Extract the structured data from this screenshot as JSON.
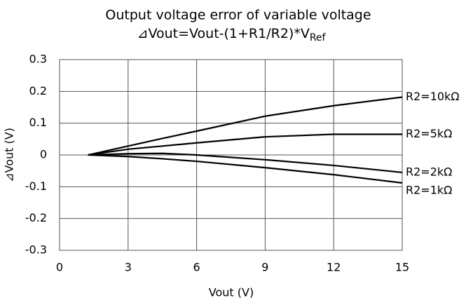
{
  "chart_data": {
    "type": "line",
    "title": "Output voltage error of variable voltage",
    "subtitle": "⊿Vout=Vout-(1+R1/R2)*V",
    "subtitle_subscript": "Ref",
    "x_label": "Vout (V)",
    "y_label": "⊿Vout (V)",
    "x": [
      1.25,
      3,
      4.5,
      6,
      9,
      12,
      15
    ],
    "series": [
      {
        "name": "R2=10kΩ",
        "color": "#000000",
        "values": [
          0,
          0.028,
          0.052,
          0.075,
          0.122,
          0.155,
          0.182
        ]
      },
      {
        "name": "R2=5kΩ",
        "color": "#000000",
        "values": [
          0,
          0.018,
          0.028,
          0.038,
          0.057,
          0.065,
          0.065
        ]
      },
      {
        "name": "R2=2kΩ",
        "color": "#000000",
        "values": [
          0,
          0.004,
          0.005,
          0.0,
          -0.015,
          -0.033,
          -0.055
        ]
      },
      {
        "name": "R2=1kΩ",
        "color": "#000000",
        "values": [
          0,
          -0.005,
          -0.012,
          -0.02,
          -0.04,
          -0.062,
          -0.088
        ]
      }
    ],
    "xlim": [
      0,
      15
    ],
    "xticks": [
      0,
      3,
      6,
      9,
      12,
      15
    ],
    "ylim": [
      -0.3,
      0.3
    ],
    "yticks": [
      0.3,
      0.2,
      0.1,
      0,
      -0.1,
      -0.2,
      -0.3
    ],
    "grid": true
  }
}
